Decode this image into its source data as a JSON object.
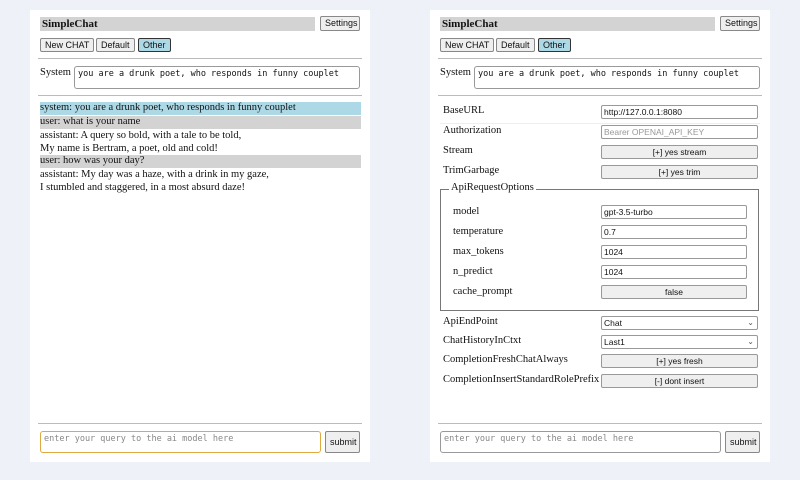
{
  "app_title": "SimpleChat",
  "settings_label": "Settings",
  "chat_buttons": [
    {
      "label": "New CHAT"
    },
    {
      "label": "Default"
    },
    {
      "label": "Other",
      "selected": true
    }
  ],
  "system_label": "System",
  "system_prompt": "you are a drunk poet, who responds in funny couplet",
  "messages": [
    {
      "role": "system",
      "lines": [
        "system: you are a drunk poet, who responds in funny couplet"
      ]
    },
    {
      "role": "user",
      "lines": [
        "user: what is your name"
      ]
    },
    {
      "role": "assistant",
      "lines": [
        "assistant: A query so bold, with a tale to be told,",
        "My name is Bertram, a poet, old and cold!"
      ]
    },
    {
      "role": "user",
      "lines": [
        "user: how was your day?"
      ]
    },
    {
      "role": "assistant",
      "lines": [
        "assistant: My day was a haze, with a drink in my gaze,",
        "I stumbled and staggered, in a most absurd daze!"
      ]
    }
  ],
  "query_placeholder": "enter your query to the ai model here",
  "submit_label": "submit",
  "settings": {
    "base_url": {
      "label": "BaseURL",
      "value": "http://127.0.0.1:8080"
    },
    "authorization": {
      "label": "Authorization",
      "placeholder": "Bearer OPENAI_API_KEY"
    },
    "stream": {
      "label": "Stream",
      "value": "[+] yes stream"
    },
    "trim_garbage": {
      "label": "TrimGarbage",
      "value": "[+] yes trim"
    },
    "api_request_options": {
      "legend": "ApiRequestOptions",
      "model": {
        "label": "model",
        "value": "gpt-3.5-turbo"
      },
      "temperature": {
        "label": "temperature",
        "value": "0.7"
      },
      "max_tokens": {
        "label": "max_tokens",
        "value": "1024"
      },
      "n_predict": {
        "label": "n_predict",
        "value": "1024"
      },
      "cache_prompt": {
        "label": "cache_prompt",
        "value": "false"
      }
    },
    "api_endpoint": {
      "label": "ApiEndPoint",
      "value": "Chat"
    },
    "chat_history": {
      "label": "ChatHistoryInCtxt",
      "value": "Last1"
    },
    "completion_fresh": {
      "label": "CompletionFreshChatAlways",
      "value": "[+] yes fresh"
    },
    "completion_prefix": {
      "label": "CompletionInsertStandardRolePrefix",
      "value": "[-] dont insert"
    }
  },
  "colors": {
    "background": "#eef1f7",
    "title_bar": "#d3d3d3",
    "system_msg": "#add8e6",
    "user_msg": "#d3d3d3",
    "selected_button": "#add8e6",
    "focus_border": "#e0a840"
  }
}
